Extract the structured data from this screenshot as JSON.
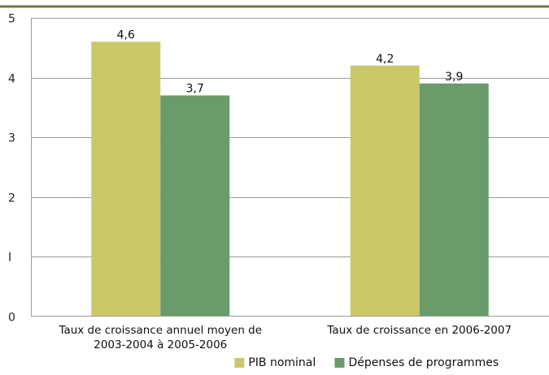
{
  "chart_data": {
    "type": "bar",
    "categories": [
      [
        "Taux de croissance annuel moyen de",
        "2003-2004 à 2005-2006"
      ],
      [
        "Taux de croissance en 2006-2007"
      ]
    ],
    "series": [
      {
        "name": "PIB nominal",
        "values": [
          4.6,
          4.2
        ],
        "labels": [
          "4,6",
          "4,2"
        ],
        "color": "#cbc86a"
      },
      {
        "name": "Dépenses de programmes",
        "values": [
          3.7,
          3.9
        ],
        "labels": [
          "3,7",
          "3,9"
        ],
        "color": "#6a9b6a"
      }
    ],
    "y_ticks": [
      0,
      1,
      2,
      3,
      4,
      5
    ],
    "y_tick_labels": [
      "0",
      "I",
      "2",
      "3",
      "4",
      "5"
    ],
    "ylim": [
      0,
      5
    ],
    "grid": true,
    "legend_position": "bottom-center",
    "title": "",
    "xlabel": "",
    "ylabel": ""
  },
  "colors": {
    "top_rule": "#6f7a2e",
    "grid": "#9a9a9a"
  }
}
